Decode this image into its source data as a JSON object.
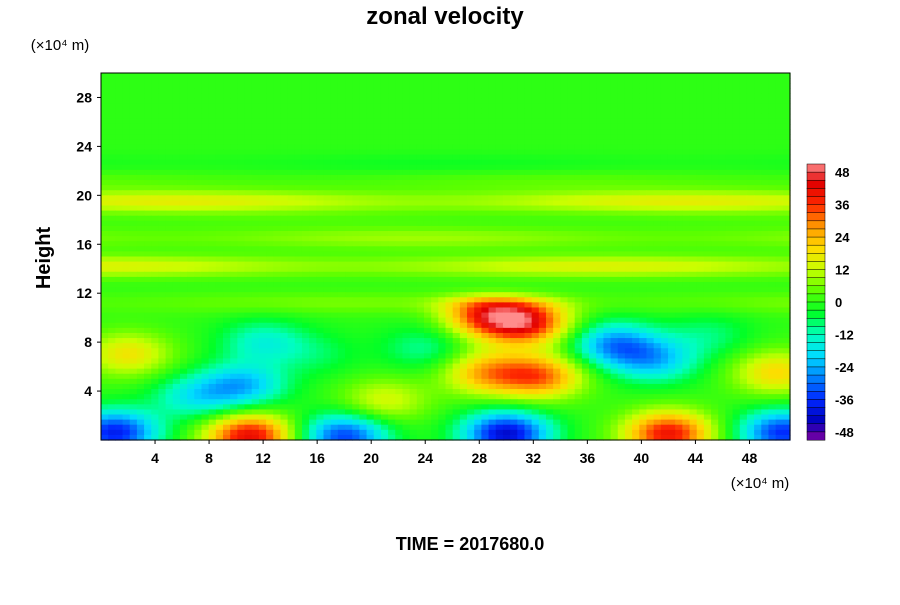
{
  "chart_data": {
    "type": "heatmap",
    "title": "zonal velocity",
    "xlabel": "",
    "ylabel": "Height",
    "x_unit_label": "(×10⁴ m)",
    "y_unit_label": "(×10⁴ m)",
    "xlim": [
      0,
      51
    ],
    "ylim": [
      0,
      30
    ],
    "x_ticks": [
      4,
      8,
      12,
      16,
      20,
      24,
      28,
      32,
      36,
      40,
      44,
      48
    ],
    "y_ticks": [
      4,
      8,
      12,
      16,
      20,
      24,
      28
    ],
    "colorbar": {
      "min": -51,
      "max": 51,
      "ticks": [
        48,
        36,
        24,
        12,
        0,
        -12,
        -24,
        -36,
        -48
      ]
    },
    "footer": "TIME = 2017680.0",
    "field_features": [
      {
        "x": 42,
        "y": 0.5,
        "value": 40
      },
      {
        "x": 11,
        "y": 0.3,
        "value": 42
      },
      {
        "x": 30,
        "y": 0.5,
        "value": -42
      },
      {
        "x": 18,
        "y": 0.3,
        "value": -34
      },
      {
        "x": 1,
        "y": 0.6,
        "value": -38
      },
      {
        "x": 50.5,
        "y": 0.6,
        "value": -36
      },
      {
        "x": 41,
        "y": 6.5,
        "value": -20
      },
      {
        "x": 38,
        "y": 7.8,
        "value": -26
      },
      {
        "x": 10.5,
        "y": 4.5,
        "value": -22
      },
      {
        "x": 12,
        "y": 8,
        "value": -14
      },
      {
        "x": 28.5,
        "y": 5.5,
        "value": 24
      },
      {
        "x": 32.5,
        "y": 5.2,
        "value": 30
      },
      {
        "x": 31.5,
        "y": 9.6,
        "value": 38
      },
      {
        "x": 28.5,
        "y": 10.2,
        "value": 32
      },
      {
        "x": 2,
        "y": 7,
        "value": 18
      },
      {
        "x": 50,
        "y": 5.5,
        "value": 20
      },
      {
        "x": 21,
        "y": 3.2,
        "value": 14
      },
      {
        "x": 7,
        "y": 3.5,
        "value": -16
      },
      {
        "x": 16,
        "y": 7,
        "value": -6
      },
      {
        "x": 24,
        "y": 7.5,
        "value": -10
      },
      {
        "x": 45,
        "y": 8.5,
        "value": -8
      }
    ],
    "layers": [
      {
        "y": 11.2,
        "value": 6
      },
      {
        "y": 14.2,
        "value": 15
      },
      {
        "y": 16.5,
        "value": 9
      },
      {
        "y": 18.2,
        "value": 2
      },
      {
        "y": 19.5,
        "value": 16
      },
      {
        "y": 21.2,
        "value": 4
      },
      {
        "y": 22.5,
        "value": -3
      }
    ]
  }
}
